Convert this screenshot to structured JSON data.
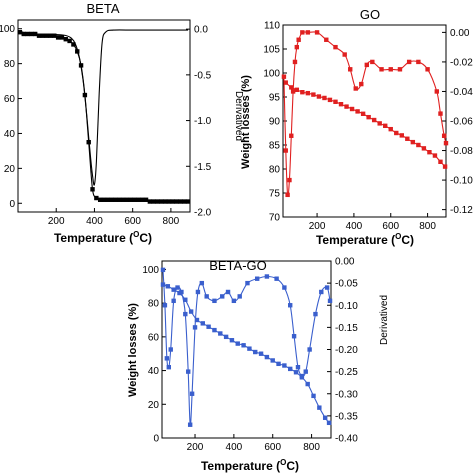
{
  "chart_data": [
    {
      "type": "line",
      "title": "BETA",
      "xlabel": "Temperature (",
      "xlabel_sup": "O",
      "xlabel_end": "C)",
      "ylabel": "",
      "ylabel_right": "Derivatived",
      "xlim": [
        0,
        900
      ],
      "ylim": [
        -5,
        105
      ],
      "ylim_right": [
        -2.0,
        0.1
      ],
      "xticks": [
        200,
        400,
        600,
        800
      ],
      "xtick_labels": [
        "200",
        "400",
        "600",
        "800"
      ],
      "yticks": [
        0,
        20,
        40,
        60,
        80,
        100
      ],
      "ytick_labels": [
        "0",
        "20",
        "40",
        "60",
        "80",
        "100"
      ],
      "yticks_right": [
        0.0,
        -0.5,
        -1.0,
        -1.5,
        -2.0
      ],
      "ytick_labels_right": [
        "0.0",
        "-0.5",
        "-1.0",
        "-1.5",
        "-2.0"
      ],
      "colors": {
        "weight": "#000000",
        "derivative": "#000000"
      },
      "series": [
        {
          "axis": "left",
          "marker": "square",
          "x": [
            10,
            30,
            50,
            70,
            90,
            110,
            130,
            150,
            170,
            190,
            210,
            230,
            250,
            270,
            290,
            310,
            330,
            350,
            370,
            390,
            410,
            430,
            450,
            470,
            490,
            510,
            530,
            550,
            570,
            590,
            610,
            630,
            650,
            670,
            690,
            710,
            730,
            750,
            770,
            790,
            810,
            830,
            850,
            870,
            890
          ],
          "values": [
            98,
            97,
            97,
            97,
            97,
            96,
            96,
            96,
            96,
            96,
            95,
            95,
            94,
            93,
            91,
            87,
            79,
            62,
            35,
            8,
            3,
            2,
            2,
            2,
            2,
            2,
            2,
            2,
            2,
            2,
            2,
            2,
            2,
            2,
            1,
            1,
            1,
            1,
            1,
            1,
            1,
            1,
            1,
            1,
            1
          ]
        },
        {
          "axis": "right",
          "marker": "none",
          "x": [
            10,
            50,
            100,
            150,
            200,
            250,
            280,
            300,
            320,
            340,
            360,
            375,
            390,
            400,
            410,
            425,
            440,
            460,
            500,
            600,
            700,
            800,
            890
          ],
          "values": [
            -0.02,
            -0.05,
            -0.06,
            -0.06,
            -0.06,
            -0.07,
            -0.1,
            -0.16,
            -0.3,
            -0.55,
            -0.95,
            -1.3,
            -1.6,
            -1.7,
            -1.45,
            -0.7,
            -0.15,
            -0.03,
            -0.01,
            -0.01,
            -0.01,
            -0.01,
            -0.01
          ]
        }
      ]
    },
    {
      "type": "line",
      "title": "GO",
      "xlabel": "Temperature (",
      "xlabel_sup": "O",
      "xlabel_end": "C)",
      "ylabel": "Weight losses (%)",
      "ylabel_right": "",
      "xlim": [
        15,
        900
      ],
      "ylim": [
        70,
        110
      ],
      "ylim_right": [
        -0.125,
        0.005
      ],
      "xticks": [
        200,
        400,
        600,
        800
      ],
      "xtick_labels": [
        "200",
        "400",
        "600",
        "800"
      ],
      "yticks": [
        70,
        75,
        80,
        85,
        90,
        95,
        100,
        105,
        110
      ],
      "ytick_labels": [
        "70",
        "75",
        "80",
        "85",
        "90",
        "95",
        "100",
        "105",
        "110"
      ],
      "yticks_right": [
        0.0,
        -0.02,
        -0.04,
        -0.06,
        -0.08,
        -0.1,
        -0.12
      ],
      "ytick_labels_right": [
        "0.00",
        "-0.02",
        "-0.04",
        "-0.06",
        "-0.08",
        "-0.10",
        "-0.12"
      ],
      "colors": {
        "weight": "#e02020",
        "derivative": "#e02020"
      },
      "series": [
        {
          "axis": "left",
          "marker": "square",
          "x": [
            30,
            60,
            90,
            120,
            150,
            180,
            210,
            240,
            270,
            300,
            330,
            360,
            390,
            420,
            450,
            480,
            510,
            540,
            570,
            600,
            630,
            660,
            690,
            720,
            750,
            780,
            810,
            840,
            870,
            895
          ],
          "values": [
            98,
            97,
            96.5,
            96,
            95.8,
            95.5,
            95.1,
            94.8,
            94.4,
            94,
            93.5,
            93,
            92.5,
            92,
            91.5,
            90.8,
            90.2,
            89.5,
            89,
            88.3,
            87.5,
            87,
            86.3,
            85.6,
            85,
            84.3,
            83.5,
            82.8,
            81.5,
            80.5
          ]
        },
        {
          "axis": "right",
          "marker": "square",
          "x": [
            20,
            30,
            40,
            50,
            60,
            70,
            80,
            90,
            100,
            120,
            150,
            200,
            250,
            300,
            350,
            380,
            410,
            440,
            470,
            500,
            550,
            600,
            650,
            700,
            750,
            800,
            850,
            870,
            890,
            900
          ],
          "values": [
            -0.03,
            -0.08,
            -0.11,
            -0.1,
            -0.07,
            -0.04,
            -0.02,
            -0.01,
            -0.005,
            0.0,
            0.0,
            0.0,
            -0.005,
            -0.01,
            -0.015,
            -0.025,
            -0.038,
            -0.035,
            -0.022,
            -0.02,
            -0.025,
            -0.025,
            -0.025,
            -0.02,
            -0.02,
            -0.025,
            -0.04,
            -0.055,
            -0.07,
            -0.075
          ]
        }
      ]
    },
    {
      "type": "line",
      "title": "BETA-GO",
      "xlabel": "Temperature (",
      "xlabel_sup": "O",
      "xlabel_end": "C)",
      "ylabel": "Weight losses (%)",
      "ylabel_right": "Derivatived",
      "xlim": [
        30,
        900
      ],
      "ylim": [
        0,
        105
      ],
      "ylim_right": [
        -0.4,
        0.0
      ],
      "xticks": [
        200,
        400,
        600,
        800
      ],
      "xtick_labels": [
        "200",
        "400",
        "600",
        "800"
      ],
      "yticks": [
        0,
        20,
        40,
        60,
        80,
        100
      ],
      "ytick_labels": [
        "0",
        "20",
        "40",
        "60",
        "80",
        "100"
      ],
      "yticks_right": [
        0.0,
        -0.05,
        -0.1,
        -0.15,
        -0.2,
        -0.25,
        -0.3,
        -0.35,
        -0.4
      ],
      "ytick_labels_right": [
        "0.00",
        "-0.05",
        "-0.10",
        "-0.15",
        "-0.20",
        "-0.25",
        "-0.30",
        "-0.35",
        "-0.40"
      ],
      "colors": {
        "weight": "#3a5fcd",
        "derivative": "#3a5fcd"
      },
      "series": [
        {
          "axis": "left",
          "marker": "square",
          "x": [
            35,
            60,
            90,
            120,
            150,
            180,
            210,
            240,
            270,
            300,
            330,
            360,
            390,
            420,
            450,
            480,
            510,
            540,
            570,
            600,
            630,
            660,
            690,
            720,
            750,
            780,
            810,
            840,
            870,
            890
          ],
          "values": [
            91,
            90,
            88,
            86,
            82,
            75,
            70,
            68,
            66,
            64,
            62,
            60,
            58,
            56,
            55,
            53,
            51,
            50,
            48,
            46,
            44,
            43,
            41,
            39,
            36,
            32,
            25,
            18,
            12,
            9
          ]
        },
        {
          "axis": "right",
          "marker": "square",
          "x": [
            35,
            45,
            55,
            65,
            75,
            90,
            110,
            130,
            150,
            165,
            175,
            185,
            200,
            215,
            235,
            260,
            300,
            340,
            370,
            400,
            430,
            470,
            520,
            570,
            620,
            660,
            690,
            710,
            730,
            750,
            770,
            790,
            820,
            850,
            880,
            895
          ],
          "values": [
            -0.02,
            -0.1,
            -0.22,
            -0.24,
            -0.2,
            -0.09,
            -0.06,
            -0.07,
            -0.12,
            -0.25,
            -0.37,
            -0.3,
            -0.15,
            -0.07,
            -0.05,
            -0.08,
            -0.09,
            -0.08,
            -0.07,
            -0.09,
            -0.08,
            -0.05,
            -0.04,
            -0.035,
            -0.04,
            -0.06,
            -0.1,
            -0.17,
            -0.24,
            -0.26,
            -0.25,
            -0.2,
            -0.12,
            -0.07,
            -0.06,
            -0.09
          ]
        }
      ]
    }
  ]
}
